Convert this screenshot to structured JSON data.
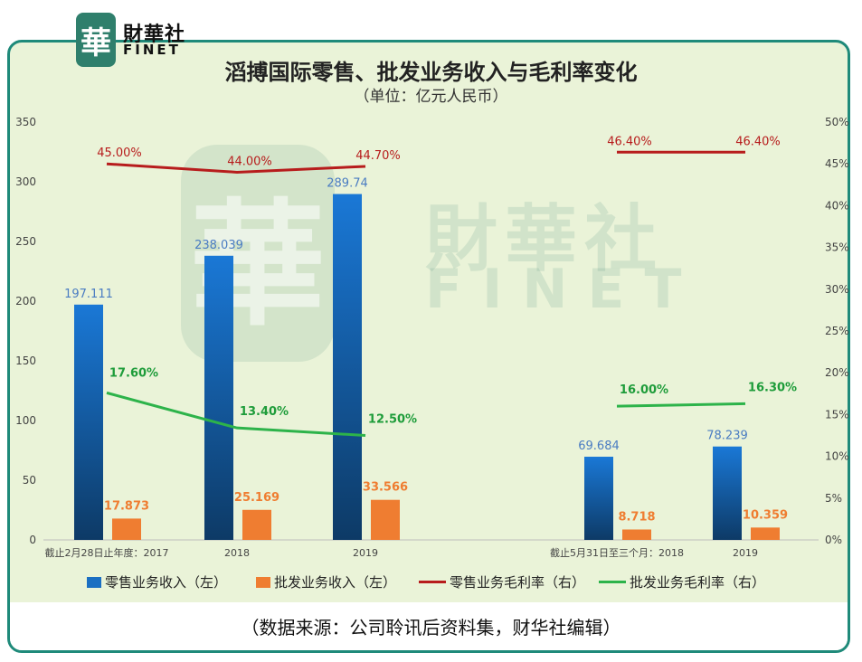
{
  "header": {
    "logo_glyph": "華",
    "logo_name": "財華社",
    "logo_en": "FINET",
    "title": "滔搏国际零售、批发业务收入与毛利率变化",
    "subtitle": "（单位：亿元人民币）"
  },
  "watermark": {
    "glyph": "華",
    "name": "財華社",
    "en": "FINET"
  },
  "source": "（数据来源：公司聆讯后资料集，财华社编辑）",
  "colors": {
    "retail": "#1b6fc2",
    "wholesale": "#ef7d31",
    "retail_margin": "#b71c1c",
    "wholesale_margin": "#2db34a"
  },
  "chart_data": {
    "type": "bar",
    "categories": [
      "截止2月28日止年度：2017",
      "2018",
      "2019",
      "截止5月31日至三个月：2018",
      "2019"
    ],
    "y_left": {
      "ylim": [
        0,
        350
      ],
      "ticks": [
        "0",
        "50",
        "100",
        "150",
        "200",
        "250",
        "300",
        "350"
      ]
    },
    "y_right": {
      "ylim": [
        0,
        50
      ],
      "ticks": [
        "0%",
        "5%",
        "10%",
        "15%",
        "20%",
        "25%",
        "30%",
        "35%",
        "40%",
        "45%",
        "50%"
      ]
    },
    "series": [
      {
        "name": "零售业务收入（左）",
        "type": "bar",
        "axis": "left",
        "values": [
          197.111,
          238.039,
          289.74,
          69.684,
          78.239
        ],
        "labels": [
          "197.111",
          "238.039",
          "289.74",
          "69.684",
          "78.239"
        ]
      },
      {
        "name": "批发业务收入（左）",
        "type": "bar",
        "axis": "left",
        "values": [
          17.873,
          25.169,
          33.566,
          8.718,
          10.359
        ],
        "labels": [
          "17.873",
          "25.169",
          "33.566",
          "8.718",
          "10.359"
        ]
      },
      {
        "name": "零售业务毛利率（右）",
        "type": "line",
        "axis": "right",
        "values": [
          45.0,
          44.0,
          44.7,
          46.4,
          46.4
        ],
        "labels": [
          "45.00%",
          "44.00%",
          "44.70%",
          "46.40%",
          "46.40%"
        ]
      },
      {
        "name": "批发业务毛利率（右）",
        "type": "line",
        "axis": "right",
        "values": [
          17.6,
          13.4,
          12.5,
          16.0,
          16.3
        ],
        "labels": [
          "17.60%",
          "13.40%",
          "12.50%",
          "16.00%",
          "16.30%"
        ]
      }
    ],
    "line_groups": [
      [
        0,
        1,
        2
      ],
      [
        3,
        4
      ]
    ],
    "legend_position": "bottom",
    "grid": false
  }
}
